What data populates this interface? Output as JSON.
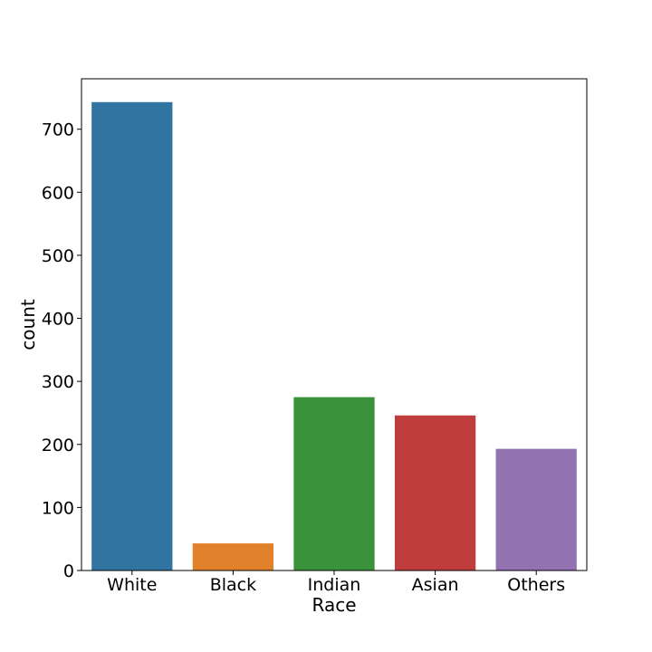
{
  "chart_data": {
    "type": "bar",
    "title": "",
    "xlabel": "Race",
    "ylabel": "count",
    "categories": [
      "White",
      "Black",
      "Indian",
      "Asian",
      "Others"
    ],
    "values": [
      743,
      43,
      275,
      246,
      193
    ],
    "ylim": [
      0,
      780
    ],
    "yticks": [
      0,
      100,
      200,
      300,
      400,
      500,
      600,
      700
    ],
    "ytick_labels": [
      "0",
      "100",
      "200",
      "300",
      "400",
      "500",
      "600",
      "700"
    ],
    "grid": false,
    "legend": "none",
    "colors": [
      "#3274a1",
      "#e1812c",
      "#3a923a",
      "#c03d3e",
      "#9372b2"
    ]
  }
}
